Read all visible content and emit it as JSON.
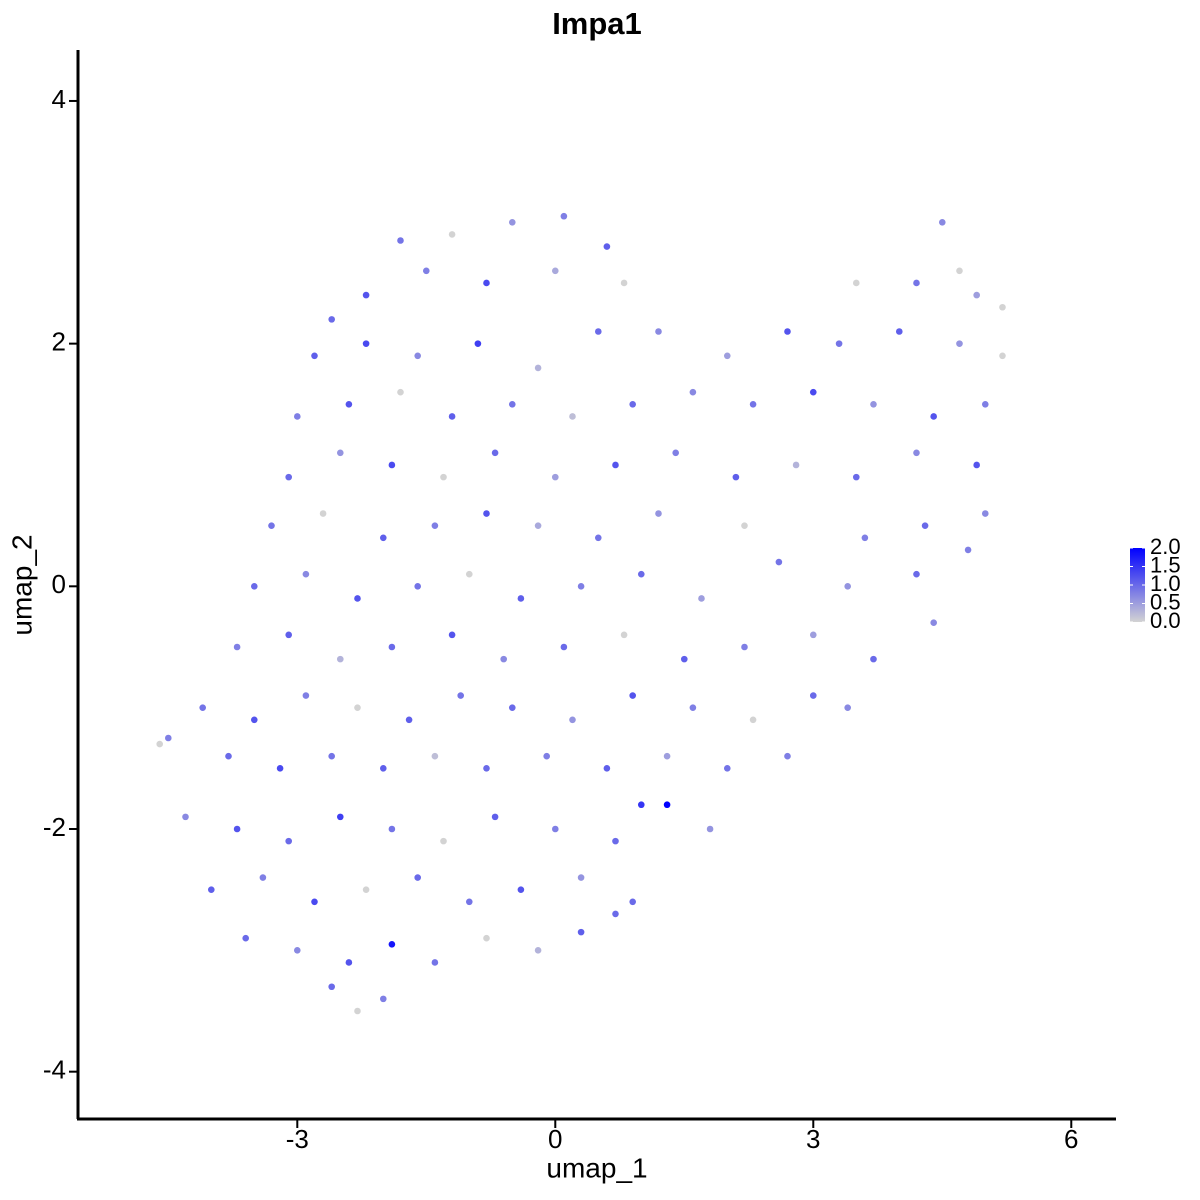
{
  "chart_data": {
    "type": "scatter",
    "title": "Impa1",
    "x_label": "umap_1",
    "y_label": "umap_2",
    "xlim": [
      -5.55,
      6.52
    ],
    "ylim": [
      -4.39,
      4.42
    ],
    "xticks": [
      -3,
      0,
      3,
      6
    ],
    "yticks": [
      -4,
      -2,
      0,
      2,
      4
    ],
    "colorbar": {
      "lim": [
        0,
        2
      ],
      "ticks": [
        {
          "value": 0,
          "label": "0.0"
        },
        0.5,
        {
          "value": 1,
          "label": "1.0"
        },
        1.5,
        {
          "value": 2,
          "label": "2.0"
        }
      ],
      "low_color": "#d3d3d3",
      "high_color": "#0000ff"
    },
    "x": [
      -1.2,
      -0.5,
      0.1,
      0.6,
      -1.8,
      4.5,
      4.7,
      -2.2,
      -1.5,
      -0.8,
      0,
      0.8,
      -2.6,
      3.5,
      4.2,
      4.9,
      5.2,
      -2.8,
      -2.2,
      -1.6,
      -0.9,
      -0.2,
      0.5,
      1.2,
      2.0,
      2.7,
      3.3,
      4.0,
      4.7,
      5.2,
      -3.0,
      -2.4,
      -1.8,
      -1.2,
      -0.5,
      0.2,
      0.9,
      1.6,
      2.3,
      3.0,
      3.7,
      4.4,
      5.0,
      -3.1,
      -2.5,
      -1.9,
      -1.3,
      -0.7,
      0,
      0.7,
      1.4,
      2.1,
      2.8,
      3.5,
      4.2,
      4.9,
      -3.3,
      -2.7,
      -2.0,
      -1.4,
      -0.8,
      -0.2,
      0.5,
      1.2,
      2.2,
      3.6,
      4.3,
      5.0,
      -3.5,
      -2.9,
      -2.3,
      -1.6,
      -1.0,
      -0.4,
      0.3,
      1.0,
      1.7,
      2.6,
      3.4,
      4.2,
      4.8,
      -3.7,
      -3.1,
      -2.5,
      -1.9,
      -1.2,
      -0.6,
      0.1,
      0.8,
      1.5,
      2.2,
      3.0,
      3.7,
      4.4,
      -4.1,
      -3.5,
      -2.9,
      -2.3,
      -1.7,
      -1.1,
      -0.5,
      0.2,
      0.9,
      1.6,
      2.3,
      3.0,
      3.4,
      -4.6,
      -4.5,
      -3.8,
      -3.2,
      -2.6,
      -2.0,
      -1.4,
      -0.8,
      -0.1,
      0.6,
      1.3,
      2.0,
      2.7,
      -4.3,
      -3.7,
      -3.1,
      -2.5,
      -1.9,
      -1.3,
      -0.7,
      0,
      0.7,
      1.3,
      1.8,
      1.0,
      -4.0,
      -3.4,
      -2.8,
      -2.2,
      -1.6,
      -1.0,
      -0.4,
      0.3,
      0.9,
      -3.6,
      -3.0,
      -2.4,
      -1.9,
      -1.4,
      -0.8,
      -0.2,
      0.3,
      0.7,
      -2.6,
      -2.3,
      -2.0
    ],
    "y": [
      2.9,
      3.0,
      3.05,
      2.8,
      2.85,
      3.0,
      2.6,
      2.4,
      2.6,
      2.5,
      2.6,
      2.5,
      2.2,
      2.5,
      2.5,
      2.4,
      2.3,
      1.9,
      2.0,
      1.9,
      2.0,
      1.8,
      2.1,
      2.1,
      1.9,
      2.1,
      2.0,
      2.1,
      2.0,
      1.9,
      1.4,
      1.5,
      1.6,
      1.4,
      1.5,
      1.4,
      1.5,
      1.6,
      1.5,
      1.6,
      1.5,
      1.4,
      1.5,
      0.9,
      1.1,
      1.0,
      0.9,
      1.1,
      0.9,
      1.0,
      1.1,
      0.9,
      1.0,
      0.9,
      1.1,
      1.0,
      0.5,
      0.6,
      0.4,
      0.5,
      0.6,
      0.5,
      0.4,
      0.6,
      0.5,
      0.4,
      0.5,
      0.6,
      0.0,
      0.1,
      -0.1,
      0.0,
      0.1,
      -0.1,
      0.0,
      0.1,
      -0.1,
      0.2,
      0.0,
      0.1,
      0.3,
      -0.5,
      -0.4,
      -0.6,
      -0.5,
      -0.4,
      -0.6,
      -0.5,
      -0.4,
      -0.6,
      -0.5,
      -0.4,
      -0.6,
      -0.3,
      -1.0,
      -1.1,
      -0.9,
      -1.0,
      -1.1,
      -0.9,
      -1.0,
      -1.1,
      -0.9,
      -1.0,
      -1.1,
      -0.9,
      -1.0,
      -1.3,
      -1.25,
      -1.4,
      -1.5,
      -1.4,
      -1.5,
      -1.4,
      -1.5,
      -1.4,
      -1.5,
      -1.4,
      -1.5,
      -1.4,
      -1.9,
      -2.0,
      -2.1,
      -1.9,
      -2.0,
      -2.1,
      -1.9,
      -2.0,
      -2.1,
      -1.8,
      -2.0,
      -1.8,
      -2.5,
      -2.4,
      -2.6,
      -2.5,
      -2.4,
      -2.6,
      -2.5,
      -2.4,
      -2.6,
      -2.9,
      -3.0,
      -3.1,
      -2.95,
      -3.1,
      -2.9,
      -3.0,
      -2.85,
      -2.7,
      -3.3,
      -3.5,
      -3.4
    ],
    "values": [
      0,
      0.6,
      0.8,
      1.1,
      0.9,
      0.7,
      0,
      1.2,
      0.8,
      1.3,
      0.4,
      0,
      1.0,
      0,
      0.9,
      0.5,
      0,
      1.1,
      1.3,
      0.7,
      1.4,
      0.3,
      1.0,
      0.7,
      0.5,
      1.2,
      0.9,
      1.1,
      0.6,
      0,
      0.8,
      1.2,
      0,
      1.1,
      0.9,
      0.2,
      1.0,
      0.7,
      0.9,
      1.3,
      0.6,
      1.2,
      0.8,
      1.0,
      0.6,
      1.3,
      0,
      1.0,
      0.5,
      1.2,
      0.8,
      1.1,
      0.3,
      1.0,
      0.7,
      1.2,
      0.9,
      0,
      1.1,
      0.8,
      1.2,
      0.4,
      0.9,
      0.6,
      0,
      0.8,
      1.0,
      0.7,
      1.0,
      0.7,
      1.2,
      0.9,
      0,
      1.1,
      0.8,
      1.0,
      0.5,
      0.9,
      0.6,
      1.0,
      0.8,
      0.8,
      1.1,
      0.3,
      1.0,
      1.2,
      0.7,
      1.0,
      0,
      1.1,
      0.8,
      0.5,
      1.0,
      0.7,
      0.9,
      1.2,
      0.8,
      0,
      1.1,
      0.9,
      1.0,
      0.6,
      1.2,
      0.8,
      0,
      1.0,
      0.7,
      0,
      0.8,
      1.0,
      1.3,
      0.9,
      1.1,
      0.2,
      1.0,
      0.8,
      1.1,
      0.5,
      0.9,
      0.8,
      0.7,
      1.2,
      1.0,
      1.4,
      0.9,
      0,
      1.1,
      0.8,
      1.0,
      2.0,
      0.6,
      1.5,
      1.1,
      0.8,
      1.3,
      0,
      1.0,
      0.9,
      1.2,
      0.6,
      1.0,
      1.0,
      0.7,
      1.2,
      1.8,
      0.9,
      0,
      0.3,
      1.1,
      1.0,
      1.0,
      0,
      0.8
    ]
  }
}
